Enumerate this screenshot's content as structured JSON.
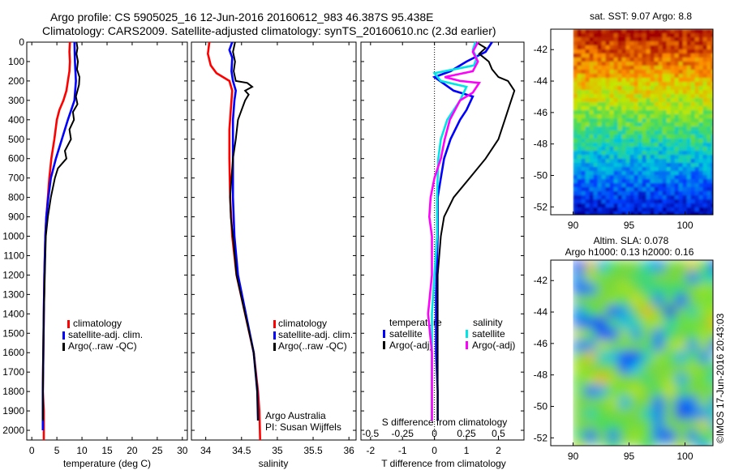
{
  "title": {
    "line1": "Argo profile: CS 5905025_16 12-Jun-2016 20160612_983 46.387S 95.438E",
    "line2": "Climatology: CARS2009. Satellite-adjusted climatology: synTS_20160610.nc (2.3d earlier)"
  },
  "colors": {
    "clim": "#ff0000",
    "sat": "#0000ff",
    "argo": "#000000",
    "sat_s": "#00e5e5",
    "argo_s": "#ff00ff"
  },
  "chart_data": [
    {
      "id": "temperature",
      "type": "line",
      "xlabel": "temperature (deg C)",
      "xlim": [
        -1,
        31
      ],
      "xticks": [
        0,
        5,
        10,
        15,
        20,
        25,
        30
      ],
      "ylim": [
        0,
        2050
      ],
      "yticks": [
        0,
        100,
        200,
        300,
        400,
        500,
        600,
        700,
        800,
        900,
        1000,
        1100,
        1200,
        1300,
        1400,
        1500,
        1600,
        1700,
        1800,
        1900,
        2000
      ],
      "y_reversed": true,
      "legend": [
        "climatology",
        "satellite-adj. clim.",
        "Argo(..raw -QC)"
      ],
      "series": [
        {
          "name": "climatology",
          "color": "clim",
          "points": [
            [
              7.6,
              0
            ],
            [
              7.5,
              50
            ],
            [
              7.6,
              100
            ],
            [
              7.5,
              150
            ],
            [
              7.2,
              200
            ],
            [
              6.9,
              250
            ],
            [
              6.3,
              300
            ],
            [
              5.5,
              350
            ],
            [
              5.0,
              400
            ],
            [
              4.5,
              500
            ],
            [
              3.9,
              600
            ],
            [
              3.5,
              700
            ],
            [
              3.2,
              800
            ],
            [
              2.9,
              900
            ],
            [
              2.7,
              1000
            ],
            [
              2.5,
              1200
            ],
            [
              2.4,
              1400
            ],
            [
              2.3,
              1600
            ],
            [
              2.2,
              1800
            ],
            [
              2.4,
              1900
            ],
            [
              2.4,
              2050
            ]
          ]
        },
        {
          "name": "satellite-adj. clim.",
          "color": "sat",
          "points": [
            [
              8.5,
              0
            ],
            [
              8.6,
              100
            ],
            [
              8.8,
              200
            ],
            [
              8.5,
              300
            ],
            [
              7.2,
              400
            ],
            [
              6.0,
              500
            ],
            [
              4.8,
              600
            ],
            [
              3.8,
              700
            ],
            [
              3.3,
              800
            ],
            [
              2.9,
              900
            ],
            [
              2.7,
              1000
            ],
            [
              2.5,
              1200
            ],
            [
              2.4,
              1400
            ],
            [
              2.3,
              1600
            ],
            [
              2.2,
              1800
            ],
            [
              2.2,
              1900
            ],
            [
              2.2,
              2000
            ]
          ]
        },
        {
          "name": "Argo(..raw -QC)",
          "color": "argo",
          "points": [
            [
              8.9,
              0
            ],
            [
              9.1,
              30
            ],
            [
              8.9,
              60
            ],
            [
              9.2,
              100
            ],
            [
              9.0,
              140
            ],
            [
              9.5,
              180
            ],
            [
              9.4,
              220
            ],
            [
              8.8,
              280
            ],
            [
              9.1,
              320
            ],
            [
              8.2,
              360
            ],
            [
              8.4,
              400
            ],
            [
              7.5,
              450
            ],
            [
              7.8,
              500
            ],
            [
              6.6,
              560
            ],
            [
              6.9,
              600
            ],
            [
              5.2,
              650
            ],
            [
              4.6,
              700
            ],
            [
              3.8,
              800
            ],
            [
              3.2,
              900
            ],
            [
              2.8,
              1000
            ],
            [
              2.6,
              1200
            ],
            [
              2.4,
              1400
            ],
            [
              2.3,
              1600
            ],
            [
              2.2,
              1800
            ],
            [
              2.2,
              1950
            ]
          ]
        }
      ]
    },
    {
      "id": "salinity",
      "type": "line",
      "xlabel": "salinity",
      "xlim": [
        33.8,
        36.1
      ],
      "xticks": [
        34,
        34.5,
        35,
        35.5,
        36
      ],
      "ylim": [
        0,
        2050
      ],
      "y_reversed": true,
      "legend": [
        "climatology",
        "satellite-adj. clim.",
        "Argo(..raw -QC)"
      ],
      "annotation": [
        "Argo Australia",
        "PI: Susan Wijffels"
      ],
      "series": [
        {
          "name": "climatology",
          "color": "clim",
          "points": [
            [
              34.05,
              0
            ],
            [
              34.03,
              60
            ],
            [
              34.07,
              120
            ],
            [
              34.15,
              160
            ],
            [
              34.33,
              200
            ],
            [
              34.37,
              250
            ],
            [
              34.35,
              350
            ],
            [
              34.33,
              450
            ],
            [
              34.33,
              600
            ],
            [
              34.34,
              800
            ],
            [
              34.37,
              1000
            ],
            [
              34.43,
              1200
            ],
            [
              34.55,
              1400
            ],
            [
              34.67,
              1600
            ],
            [
              34.73,
              1800
            ],
            [
              34.75,
              1900
            ],
            [
              34.76,
              2050
            ]
          ]
        },
        {
          "name": "satellite-adj. clim.",
          "color": "sat",
          "points": [
            [
              34.37,
              0
            ],
            [
              34.33,
              40
            ],
            [
              34.37,
              80
            ],
            [
              34.36,
              150
            ],
            [
              34.38,
              200
            ],
            [
              34.42,
              250
            ],
            [
              34.4,
              300
            ],
            [
              34.38,
              400
            ],
            [
              34.38,
              600
            ],
            [
              34.38,
              800
            ],
            [
              34.4,
              1000
            ],
            [
              34.45,
              1200
            ],
            [
              34.56,
              1400
            ],
            [
              34.67,
              1600
            ],
            [
              34.72,
              1800
            ],
            [
              34.73,
              1950
            ]
          ]
        },
        {
          "name": "Argo(..raw -QC)",
          "color": "argo",
          "points": [
            [
              34.41,
              0
            ],
            [
              34.38,
              50
            ],
            [
              34.41,
              100
            ],
            [
              34.39,
              150
            ],
            [
              34.42,
              200
            ],
            [
              34.58,
              210
            ],
            [
              34.65,
              230
            ],
            [
              34.55,
              250
            ],
            [
              34.6,
              270
            ],
            [
              34.55,
              300
            ],
            [
              34.5,
              350
            ],
            [
              34.45,
              400
            ],
            [
              34.42,
              500
            ],
            [
              34.38,
              600
            ],
            [
              34.36,
              700
            ],
            [
              34.34,
              800
            ],
            [
              34.35,
              900
            ],
            [
              34.38,
              1000
            ],
            [
              34.43,
              1200
            ],
            [
              34.55,
              1400
            ],
            [
              34.67,
              1600
            ],
            [
              34.72,
              1800
            ],
            [
              34.73,
              1950
            ]
          ]
        }
      ]
    },
    {
      "id": "differences",
      "type": "line",
      "xlabel": "T difference from climatology",
      "x2label": "S difference from climatology",
      "xlim": [
        -2.3,
        2.8
      ],
      "xticks": [
        -2,
        -1,
        0,
        1,
        2
      ],
      "x2_ticks": [
        -0.5,
        -0.25,
        0,
        0.25,
        0.5
      ],
      "x2_tick_labels": [
        "-0.5",
        "-0.25",
        "0",
        "0.25",
        "0.5"
      ],
      "ylim": [
        0,
        2050
      ],
      "y_reversed": true,
      "legend_groups": [
        {
          "heading": "temperature",
          "items": [
            "satellite",
            "Argo(-adj)"
          ]
        },
        {
          "heading": "salinity",
          "items": [
            "satellite",
            "Argo(-adj)"
          ]
        }
      ],
      "series": [
        {
          "name": "temperature satellite",
          "color": "sat",
          "points": [
            [
              1.8,
              0
            ],
            [
              1.6,
              50
            ],
            [
              1.0,
              100
            ],
            [
              0.5,
              150
            ],
            [
              0.0,
              180
            ],
            [
              0.6,
              250
            ],
            [
              1.2,
              280
            ],
            [
              1.0,
              350
            ],
            [
              0.8,
              400
            ],
            [
              0.5,
              500
            ],
            [
              0.3,
              600
            ],
            [
              0.2,
              700
            ],
            [
              0.1,
              800
            ],
            [
              0.1,
              1000
            ],
            [
              0.05,
              1300
            ],
            [
              0.05,
              1600
            ],
            [
              0.1,
              1800
            ],
            [
              0.1,
              1950
            ]
          ]
        },
        {
          "name": "temperature Argo(-adj)",
          "color": "argo",
          "points": [
            [
              1.3,
              0
            ],
            [
              1.6,
              30
            ],
            [
              1.4,
              60
            ],
            [
              1.7,
              100
            ],
            [
              1.8,
              140
            ],
            [
              2.0,
              180
            ],
            [
              2.3,
              200
            ],
            [
              2.5,
              250
            ],
            [
              2.4,
              300
            ],
            [
              2.2,
              400
            ],
            [
              2.0,
              500
            ],
            [
              1.6,
              600
            ],
            [
              1.1,
              700
            ],
            [
              0.6,
              800
            ],
            [
              0.3,
              900
            ],
            [
              0.2,
              1000
            ],
            [
              0.1,
              1200
            ],
            [
              0.1,
              1500
            ],
            [
              0.1,
              1800
            ],
            [
              0.1,
              1950
            ]
          ]
        },
        {
          "name": "salinity satellite",
          "color": "sat_s",
          "points": [
            [
              0.32,
              0
            ],
            [
              0.3,
              40
            ],
            [
              0.33,
              80
            ],
            [
              0.31,
              120
            ],
            [
              0.0,
              160
            ],
            [
              0.05,
              200
            ],
            [
              0.25,
              230
            ],
            [
              0.2,
              300
            ],
            [
              0.1,
              400
            ],
            [
              0.05,
              500
            ],
            [
              0.03,
              600
            ],
            [
              0.02,
              800
            ],
            [
              0.02,
              1000
            ],
            [
              0.0,
              1200
            ],
            [
              -0.02,
              1400
            ],
            [
              -0.02,
              1600
            ],
            [
              -0.02,
              1800
            ],
            [
              -0.02,
              1950
            ]
          ]
        },
        {
          "name": "salinity Argo(-adj)",
          "color": "argo_s",
          "points": [
            [
              0.34,
              0
            ],
            [
              0.3,
              50
            ],
            [
              0.34,
              100
            ],
            [
              0.3,
              150
            ],
            [
              0.08,
              180
            ],
            [
              0.2,
              200
            ],
            [
              0.35,
              210
            ],
            [
              0.3,
              260
            ],
            [
              0.2,
              300
            ],
            [
              0.12,
              400
            ],
            [
              0.08,
              500
            ],
            [
              0.05,
              600
            ],
            [
              0.0,
              700
            ],
            [
              -0.03,
              800
            ],
            [
              -0.04,
              900
            ],
            [
              -0.02,
              1000
            ],
            [
              -0.02,
              1200
            ],
            [
              -0.05,
              1400
            ],
            [
              -0.02,
              1600
            ],
            [
              -0.02,
              1800
            ],
            [
              -0.02,
              1950
            ]
          ]
        }
      ]
    },
    {
      "id": "sst_map",
      "type": "heatmap",
      "title": "sat. SST: 9.07 Argo: 8.8",
      "xlim": [
        88,
        102.5
      ],
      "xticks": [
        90,
        95,
        100
      ],
      "ylim": [
        -52.5,
        -40.7
      ],
      "yticks": [
        -42,
        -44,
        -46,
        -48,
        -50,
        -52
      ]
    },
    {
      "id": "sla_map",
      "type": "heatmap",
      "title": [
        "Altim. SLA: 0.078",
        "Argo h1000: 0.13 h2000: 0.16"
      ],
      "xlim": [
        88,
        102.5
      ],
      "xticks": [
        90,
        95,
        100
      ],
      "ylim": [
        -52.5,
        -40.7
      ],
      "yticks": [
        -42,
        -44,
        -46,
        -48,
        -50,
        -52
      ]
    }
  ],
  "footer": "©IMOS 17-Jun-2016 20:43:03"
}
